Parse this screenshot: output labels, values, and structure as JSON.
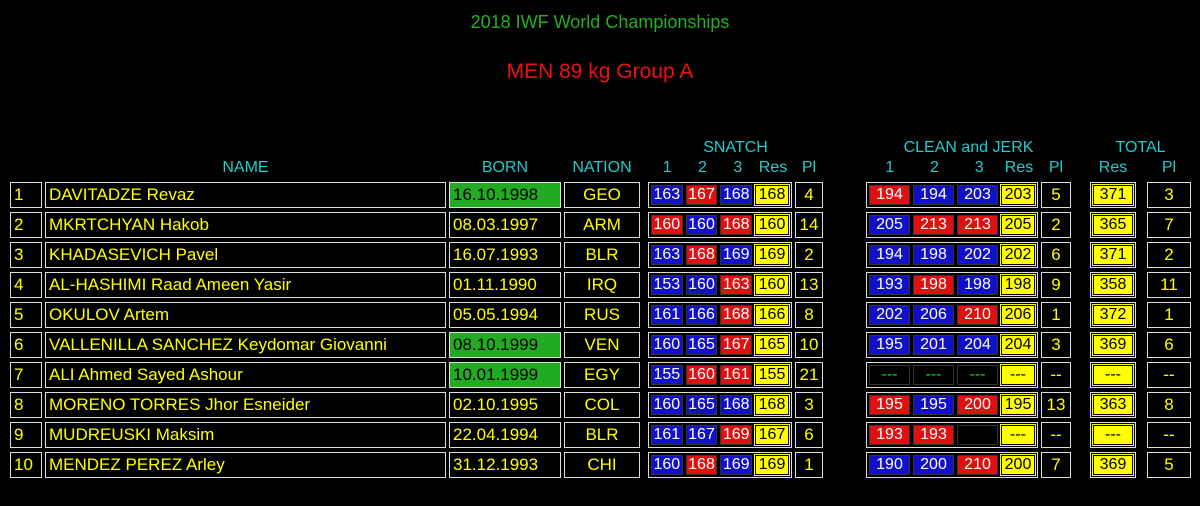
{
  "header": {
    "title": "2018 IWF World Championships",
    "subtitle": "MEN 89 kg Group A"
  },
  "columns": {
    "name": "NAME",
    "born": "BORN",
    "nation": "NATION",
    "snatch": {
      "title": "SNATCH",
      "labels": [
        "1",
        "2",
        "3",
        "Res",
        "Pl"
      ]
    },
    "clean_and_jerk": {
      "title": "CLEAN and JERK",
      "labels": [
        "1",
        "2",
        "3",
        "Res",
        "Pl"
      ]
    },
    "total": {
      "title": "TOTAL",
      "labels": [
        "Res",
        "Pl"
      ]
    }
  },
  "rows": [
    {
      "rank": 1,
      "name": "DAVITADZE Revaz",
      "born": "16.10.1998",
      "born_color": "#22aa22",
      "nation": "GEO",
      "snatch": [
        {
          "value": 163,
          "color": "#1010c8"
        },
        {
          "value": 167,
          "color": "#e01010"
        },
        {
          "value": 168,
          "color": "#1010c8"
        }
      ],
      "snatch_res": 168,
      "snatch_pl": 4,
      "cj": [
        {
          "value": 194,
          "color": "#e01010"
        },
        {
          "value": 194,
          "color": "#1010c8"
        },
        {
          "value": 203,
          "color": "#1010c8"
        }
      ],
      "cj_res": 203,
      "cj_pl": 5,
      "total_res": 371,
      "total_pl": 3
    },
    {
      "rank": 2,
      "name": "MKRTCHYAN Hakob",
      "born": "08.03.1997",
      "nation": "ARM",
      "snatch": [
        {
          "value": 160,
          "color": "#e01010"
        },
        {
          "value": 160,
          "color": "#1010c8"
        },
        {
          "value": 168,
          "color": "#e01010"
        }
      ],
      "snatch_res": 160,
      "snatch_pl": 14,
      "cj": [
        {
          "value": 205,
          "color": "#1010c8"
        },
        {
          "value": 213,
          "color": "#e01010"
        },
        {
          "value": 213,
          "color": "#e01010"
        }
      ],
      "cj_res": 205,
      "cj_pl": 2,
      "total_res": 365,
      "total_pl": 7
    },
    {
      "rank": 3,
      "name": "KHADASEVICH Pavel",
      "born": "16.07.1993",
      "nation": "BLR",
      "snatch": [
        {
          "value": 163,
          "color": "#1010c8"
        },
        {
          "value": 168,
          "color": "#e01010"
        },
        {
          "value": 169,
          "color": "#1010c8"
        }
      ],
      "snatch_res": 169,
      "snatch_pl": 2,
      "cj": [
        {
          "value": 194,
          "color": "#1010c8"
        },
        {
          "value": 198,
          "color": "#1010c8"
        },
        {
          "value": 202,
          "color": "#1010c8"
        }
      ],
      "cj_res": 202,
      "cj_pl": 6,
      "total_res": 371,
      "total_pl": 2
    },
    {
      "rank": 4,
      "name": "AL-HASHIMI Raad Ameen Yasir",
      "born": "01.11.1990",
      "nation": "IRQ",
      "snatch": [
        {
          "value": 153,
          "color": "#1010c8"
        },
        {
          "value": 160,
          "color": "#1010c8"
        },
        {
          "value": 163,
          "color": "#e01010"
        }
      ],
      "snatch_res": 160,
      "snatch_pl": 13,
      "cj": [
        {
          "value": 193,
          "color": "#1010c8"
        },
        {
          "value": 198,
          "color": "#e01010"
        },
        {
          "value": 198,
          "color": "#1010c8"
        }
      ],
      "cj_res": 198,
      "cj_pl": 9,
      "total_res": 358,
      "total_pl": 11
    },
    {
      "rank": 5,
      "name": "OKULOV Artem",
      "born": "05.05.1994",
      "nation": "RUS",
      "snatch": [
        {
          "value": 161,
          "color": "#1010c8"
        },
        {
          "value": 166,
          "color": "#1010c8"
        },
        {
          "value": 168,
          "color": "#e01010"
        }
      ],
      "snatch_res": 166,
      "snatch_pl": 8,
      "cj": [
        {
          "value": 202,
          "color": "#1010c8"
        },
        {
          "value": 206,
          "color": "#1010c8"
        },
        {
          "value": 210,
          "color": "#e01010"
        }
      ],
      "cj_res": 206,
      "cj_pl": 1,
      "total_res": 372,
      "total_pl": 1
    },
    {
      "rank": 6,
      "name": "VALLENILLA SANCHEZ Keydomar Giovanni",
      "born": "08.10.1999",
      "born_color": "#22aa22",
      "nation": "VEN",
      "snatch": [
        {
          "value": 160,
          "color": "#1010c8"
        },
        {
          "value": 165,
          "color": "#1010c8"
        },
        {
          "value": 167,
          "color": "#e01010"
        }
      ],
      "snatch_res": 165,
      "snatch_pl": 10,
      "cj": [
        {
          "value": 195,
          "color": "#1010c8"
        },
        {
          "value": 201,
          "color": "#1010c8"
        },
        {
          "value": 204,
          "color": "#1010c8"
        }
      ],
      "cj_res": 204,
      "cj_pl": 3,
      "total_res": 369,
      "total_pl": 6
    },
    {
      "rank": 7,
      "name": "ALI Ahmed Sayed Ashour",
      "born": "10.01.1999",
      "born_color": "#22aa22",
      "nation": "EGY",
      "snatch": [
        {
          "value": 155,
          "color": "#1010c8"
        },
        {
          "value": 160,
          "color": "#e01010"
        },
        {
          "value": 161,
          "color": "#e01010"
        }
      ],
      "snatch_res": 155,
      "snatch_pl": 21,
      "cj": [
        {
          "value": "---",
          "color": "#000000"
        },
        {
          "value": "---",
          "color": "#000000"
        },
        {
          "value": "---",
          "color": "#000000"
        }
      ],
      "cj_res": "---",
      "cj_pl": "--",
      "total_res": "---",
      "total_pl": "--"
    },
    {
      "rank": 8,
      "name": "MORENO TORRES Jhor Esneider",
      "born": "02.10.1995",
      "nation": "COL",
      "snatch": [
        {
          "value": 160,
          "color": "#1010c8"
        },
        {
          "value": 165,
          "color": "#1010c8"
        },
        {
          "value": 168,
          "color": "#1010c8"
        }
      ],
      "snatch_res": 168,
      "snatch_pl": 3,
      "cj": [
        {
          "value": 195,
          "color": "#e01010"
        },
        {
          "value": 195,
          "color": "#1010c8"
        },
        {
          "value": 200,
          "color": "#e01010"
        }
      ],
      "cj_res": 195,
      "cj_pl": 13,
      "total_res": 363,
      "total_pl": 8
    },
    {
      "rank": 9,
      "name": "MUDREUSKI Maksim",
      "born": "22.04.1994",
      "nation": "BLR",
      "snatch": [
        {
          "value": 161,
          "color": "#1010c8"
        },
        {
          "value": 167,
          "color": "#1010c8"
        },
        {
          "value": 169,
          "color": "#e01010"
        }
      ],
      "snatch_res": 167,
      "snatch_pl": 6,
      "cj": [
        {
          "value": 193,
          "color": "#e01010"
        },
        {
          "value": 193,
          "color": "#e01010"
        },
        {
          "value": null,
          "color": "#000000"
        }
      ],
      "cj_res": "---",
      "cj_pl": "--",
      "total_res": "---",
      "total_pl": "--"
    },
    {
      "rank": 10,
      "name": "MENDEZ PEREZ Arley",
      "born": "31.12.1993",
      "nation": "CHI",
      "snatch": [
        {
          "value": 160,
          "color": "#1010c8"
        },
        {
          "value": 168,
          "color": "#e01010"
        },
        {
          "value": 169,
          "color": "#1010c8"
        }
      ],
      "snatch_res": 169,
      "snatch_pl": 1,
      "cj": [
        {
          "value": 190,
          "color": "#1010c8"
        },
        {
          "value": 200,
          "color": "#1010c8"
        },
        {
          "value": 210,
          "color": "#e01010"
        }
      ],
      "cj_res": 200,
      "cj_pl": 7,
      "total_res": 369,
      "total_pl": 5
    }
  ]
}
